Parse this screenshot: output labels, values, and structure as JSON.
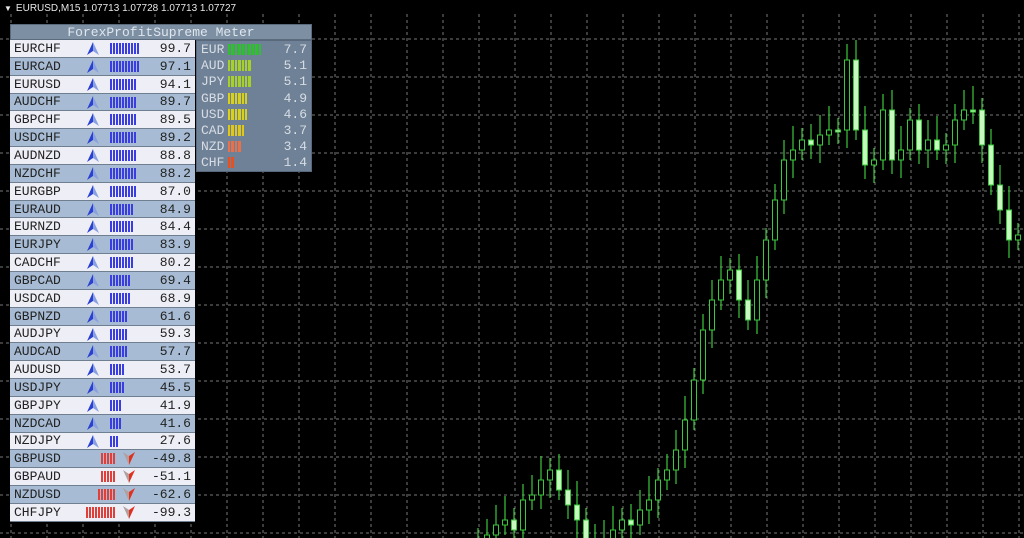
{
  "window": {
    "symbol_title": "EURUSD,M15  1.07713 1.07728 1.07713 1.07727"
  },
  "meter": {
    "title": "ForexProfitSupreme Meter",
    "pairs": [
      {
        "pair": "EURCHF",
        "value": "99.7",
        "dir": "up"
      },
      {
        "pair": "EURCAD",
        "value": "97.1",
        "dir": "up"
      },
      {
        "pair": "EURUSD",
        "value": "94.1",
        "dir": "up"
      },
      {
        "pair": "AUDCHF",
        "value": "89.7",
        "dir": "up"
      },
      {
        "pair": "GBPCHF",
        "value": "89.5",
        "dir": "up"
      },
      {
        "pair": "USDCHF",
        "value": "89.2",
        "dir": "up"
      },
      {
        "pair": "AUDNZD",
        "value": "88.8",
        "dir": "up"
      },
      {
        "pair": "NZDCHF",
        "value": "88.2",
        "dir": "up"
      },
      {
        "pair": "EURGBP",
        "value": "87.0",
        "dir": "up"
      },
      {
        "pair": "EURAUD",
        "value": "84.9",
        "dir": "up"
      },
      {
        "pair": "EURNZD",
        "value": "84.4",
        "dir": "up"
      },
      {
        "pair": "EURJPY",
        "value": "83.9",
        "dir": "up"
      },
      {
        "pair": "CADCHF",
        "value": "80.2",
        "dir": "up"
      },
      {
        "pair": "GBPCAD",
        "value": "69.4",
        "dir": "up"
      },
      {
        "pair": "USDCAD",
        "value": "68.9",
        "dir": "up"
      },
      {
        "pair": "GBPNZD",
        "value": "61.6",
        "dir": "up"
      },
      {
        "pair": "AUDJPY",
        "value": "59.3",
        "dir": "up"
      },
      {
        "pair": "AUDCAD",
        "value": "57.7",
        "dir": "up"
      },
      {
        "pair": "AUDUSD",
        "value": "53.7",
        "dir": "up"
      },
      {
        "pair": "USDJPY",
        "value": "45.5",
        "dir": "up"
      },
      {
        "pair": "GBPJPY",
        "value": "41.9",
        "dir": "up"
      },
      {
        "pair": "NZDCAD",
        "value": "41.6",
        "dir": "up"
      },
      {
        "pair": "NZDJPY",
        "value": "27.6",
        "dir": "up"
      },
      {
        "pair": "GBPUSD",
        "value": "-49.8",
        "dir": "down"
      },
      {
        "pair": "GBPAUD",
        "value": "-51.1",
        "dir": "down"
      },
      {
        "pair": "NZDUSD",
        "value": "-62.6",
        "dir": "down"
      },
      {
        "pair": "CHFJPY",
        "value": "-99.3",
        "dir": "down"
      }
    ],
    "currencies": [
      {
        "cur": "EUR",
        "value": "7.7",
        "color": "#2fbf2f"
      },
      {
        "cur": "AUD",
        "value": "5.1",
        "color": "#a8d02a"
      },
      {
        "cur": "JPY",
        "value": "5.1",
        "color": "#a8d02a"
      },
      {
        "cur": "GBP",
        "value": "4.9",
        "color": "#d8d01a"
      },
      {
        "cur": "USD",
        "value": "4.6",
        "color": "#d8d01a"
      },
      {
        "cur": "CAD",
        "value": "3.7",
        "color": "#e0c81a"
      },
      {
        "cur": "NZD",
        "value": "3.4",
        "color": "#e8704a"
      },
      {
        "cur": "CHF",
        "value": "1.4",
        "color": "#e85020"
      }
    ],
    "colors": {
      "up_bar": "#3a3ee0",
      "down_bar": "#e0403a",
      "candle": "#3cc83c",
      "candle_body": "#c8f8c0"
    }
  }
}
